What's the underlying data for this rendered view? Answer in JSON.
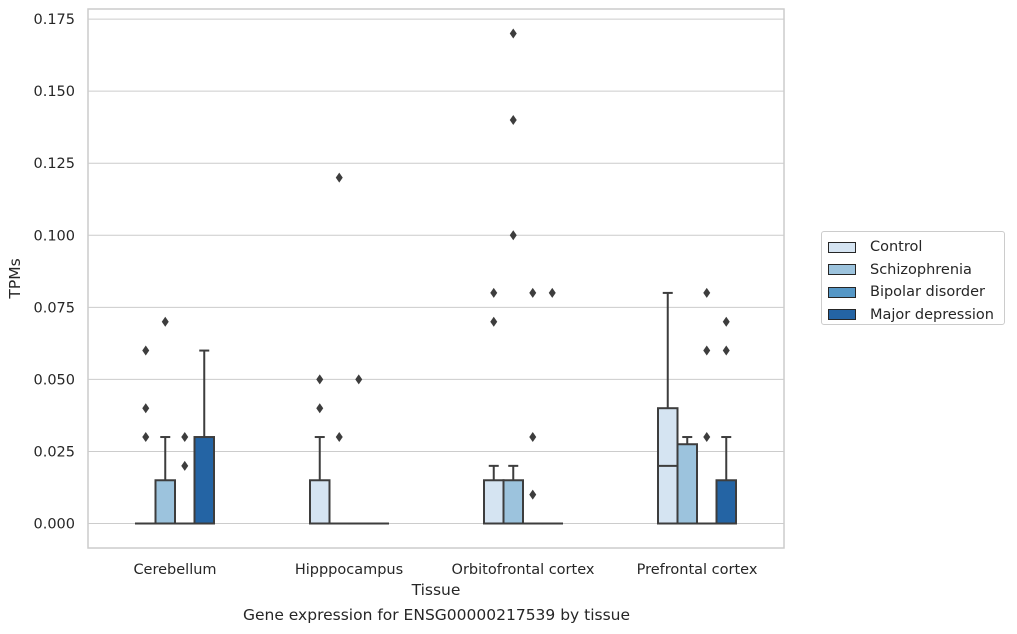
{
  "caption": "Gene expression for ENSG00000217539 by tissue",
  "chart_data": {
    "type": "box",
    "title": "",
    "xlabel": "Tissue",
    "ylabel": "TPMs",
    "ylim": [
      -0.0085,
      0.1785
    ],
    "yticks": [
      "0.000",
      "0.025",
      "0.050",
      "0.075",
      "0.100",
      "0.125",
      "0.150",
      "0.175"
    ],
    "grid": true,
    "legend_position": "right",
    "categories": [
      "Cerebellum",
      "Hipppocampus",
      "Orbitofrontal cortex",
      "Prefrontal cortex"
    ],
    "series": [
      {
        "name": "Control",
        "color": "#d5e4f2"
      },
      {
        "name": "Schizophrenia",
        "color": "#9cc3dd"
      },
      {
        "name": "Bipolar disorder",
        "color": "#5597c6"
      },
      {
        "name": "Major depression",
        "color": "#2464a4"
      }
    ],
    "boxes": [
      [
        {
          "q1": 0,
          "median": 0,
          "q3": 0,
          "whisker_low": 0,
          "whisker_high": 0,
          "outliers": [
            0.06,
            0.04,
            0.03
          ]
        },
        {
          "q1": 0,
          "median": 0,
          "q3": 0.015,
          "whisker_low": 0,
          "whisker_high": 0.03,
          "outliers": [
            0.07
          ]
        },
        {
          "q1": 0,
          "median": 0,
          "q3": 0,
          "whisker_low": 0,
          "whisker_high": 0,
          "outliers": [
            0.03,
            0.02
          ]
        },
        {
          "q1": 0,
          "median": 0,
          "q3": 0.03,
          "whisker_low": 0,
          "whisker_high": 0.06,
          "outliers": []
        }
      ],
      [
        {
          "q1": 0,
          "median": 0,
          "q3": 0.015,
          "whisker_low": 0,
          "whisker_high": 0.03,
          "outliers": [
            0.05,
            0.04
          ]
        },
        {
          "q1": 0,
          "median": 0,
          "q3": 0,
          "whisker_low": 0,
          "whisker_high": 0,
          "outliers": [
            0.12,
            0.03
          ]
        },
        {
          "q1": 0,
          "median": 0,
          "q3": 0,
          "whisker_low": 0,
          "whisker_high": 0,
          "outliers": [
            0.05
          ]
        },
        {
          "q1": 0,
          "median": 0,
          "q3": 0,
          "whisker_low": 0,
          "whisker_high": 0,
          "outliers": []
        }
      ],
      [
        {
          "q1": 0,
          "median": 0,
          "q3": 0.015,
          "whisker_low": 0,
          "whisker_high": 0.02,
          "outliers": [
            0.08,
            0.07
          ]
        },
        {
          "q1": 0,
          "median": 0,
          "q3": 0.015,
          "whisker_low": 0,
          "whisker_high": 0.02,
          "outliers": [
            0.17,
            0.14,
            0.1
          ]
        },
        {
          "q1": 0,
          "median": 0,
          "q3": 0,
          "whisker_low": 0,
          "whisker_high": 0,
          "outliers": [
            0.08,
            0.03,
            0.01
          ]
        },
        {
          "q1": 0,
          "median": 0,
          "q3": 0,
          "whisker_low": 0,
          "whisker_high": 0,
          "outliers": [
            0.08
          ]
        }
      ],
      [
        {
          "q1": 0,
          "median": 0.02,
          "q3": 0.04,
          "whisker_low": 0,
          "whisker_high": 0.08,
          "outliers": []
        },
        {
          "q1": 0,
          "median": 0,
          "q3": 0.0275,
          "whisker_low": 0,
          "whisker_high": 0.03,
          "outliers": []
        },
        {
          "q1": 0,
          "median": 0,
          "q3": 0,
          "whisker_low": 0,
          "whisker_high": 0,
          "outliers": [
            0.08,
            0.06,
            0.03
          ]
        },
        {
          "q1": 0,
          "median": 0,
          "q3": 0.015,
          "whisker_low": 0,
          "whisker_high": 0.03,
          "outliers": [
            0.07,
            0.06
          ]
        }
      ]
    ]
  }
}
